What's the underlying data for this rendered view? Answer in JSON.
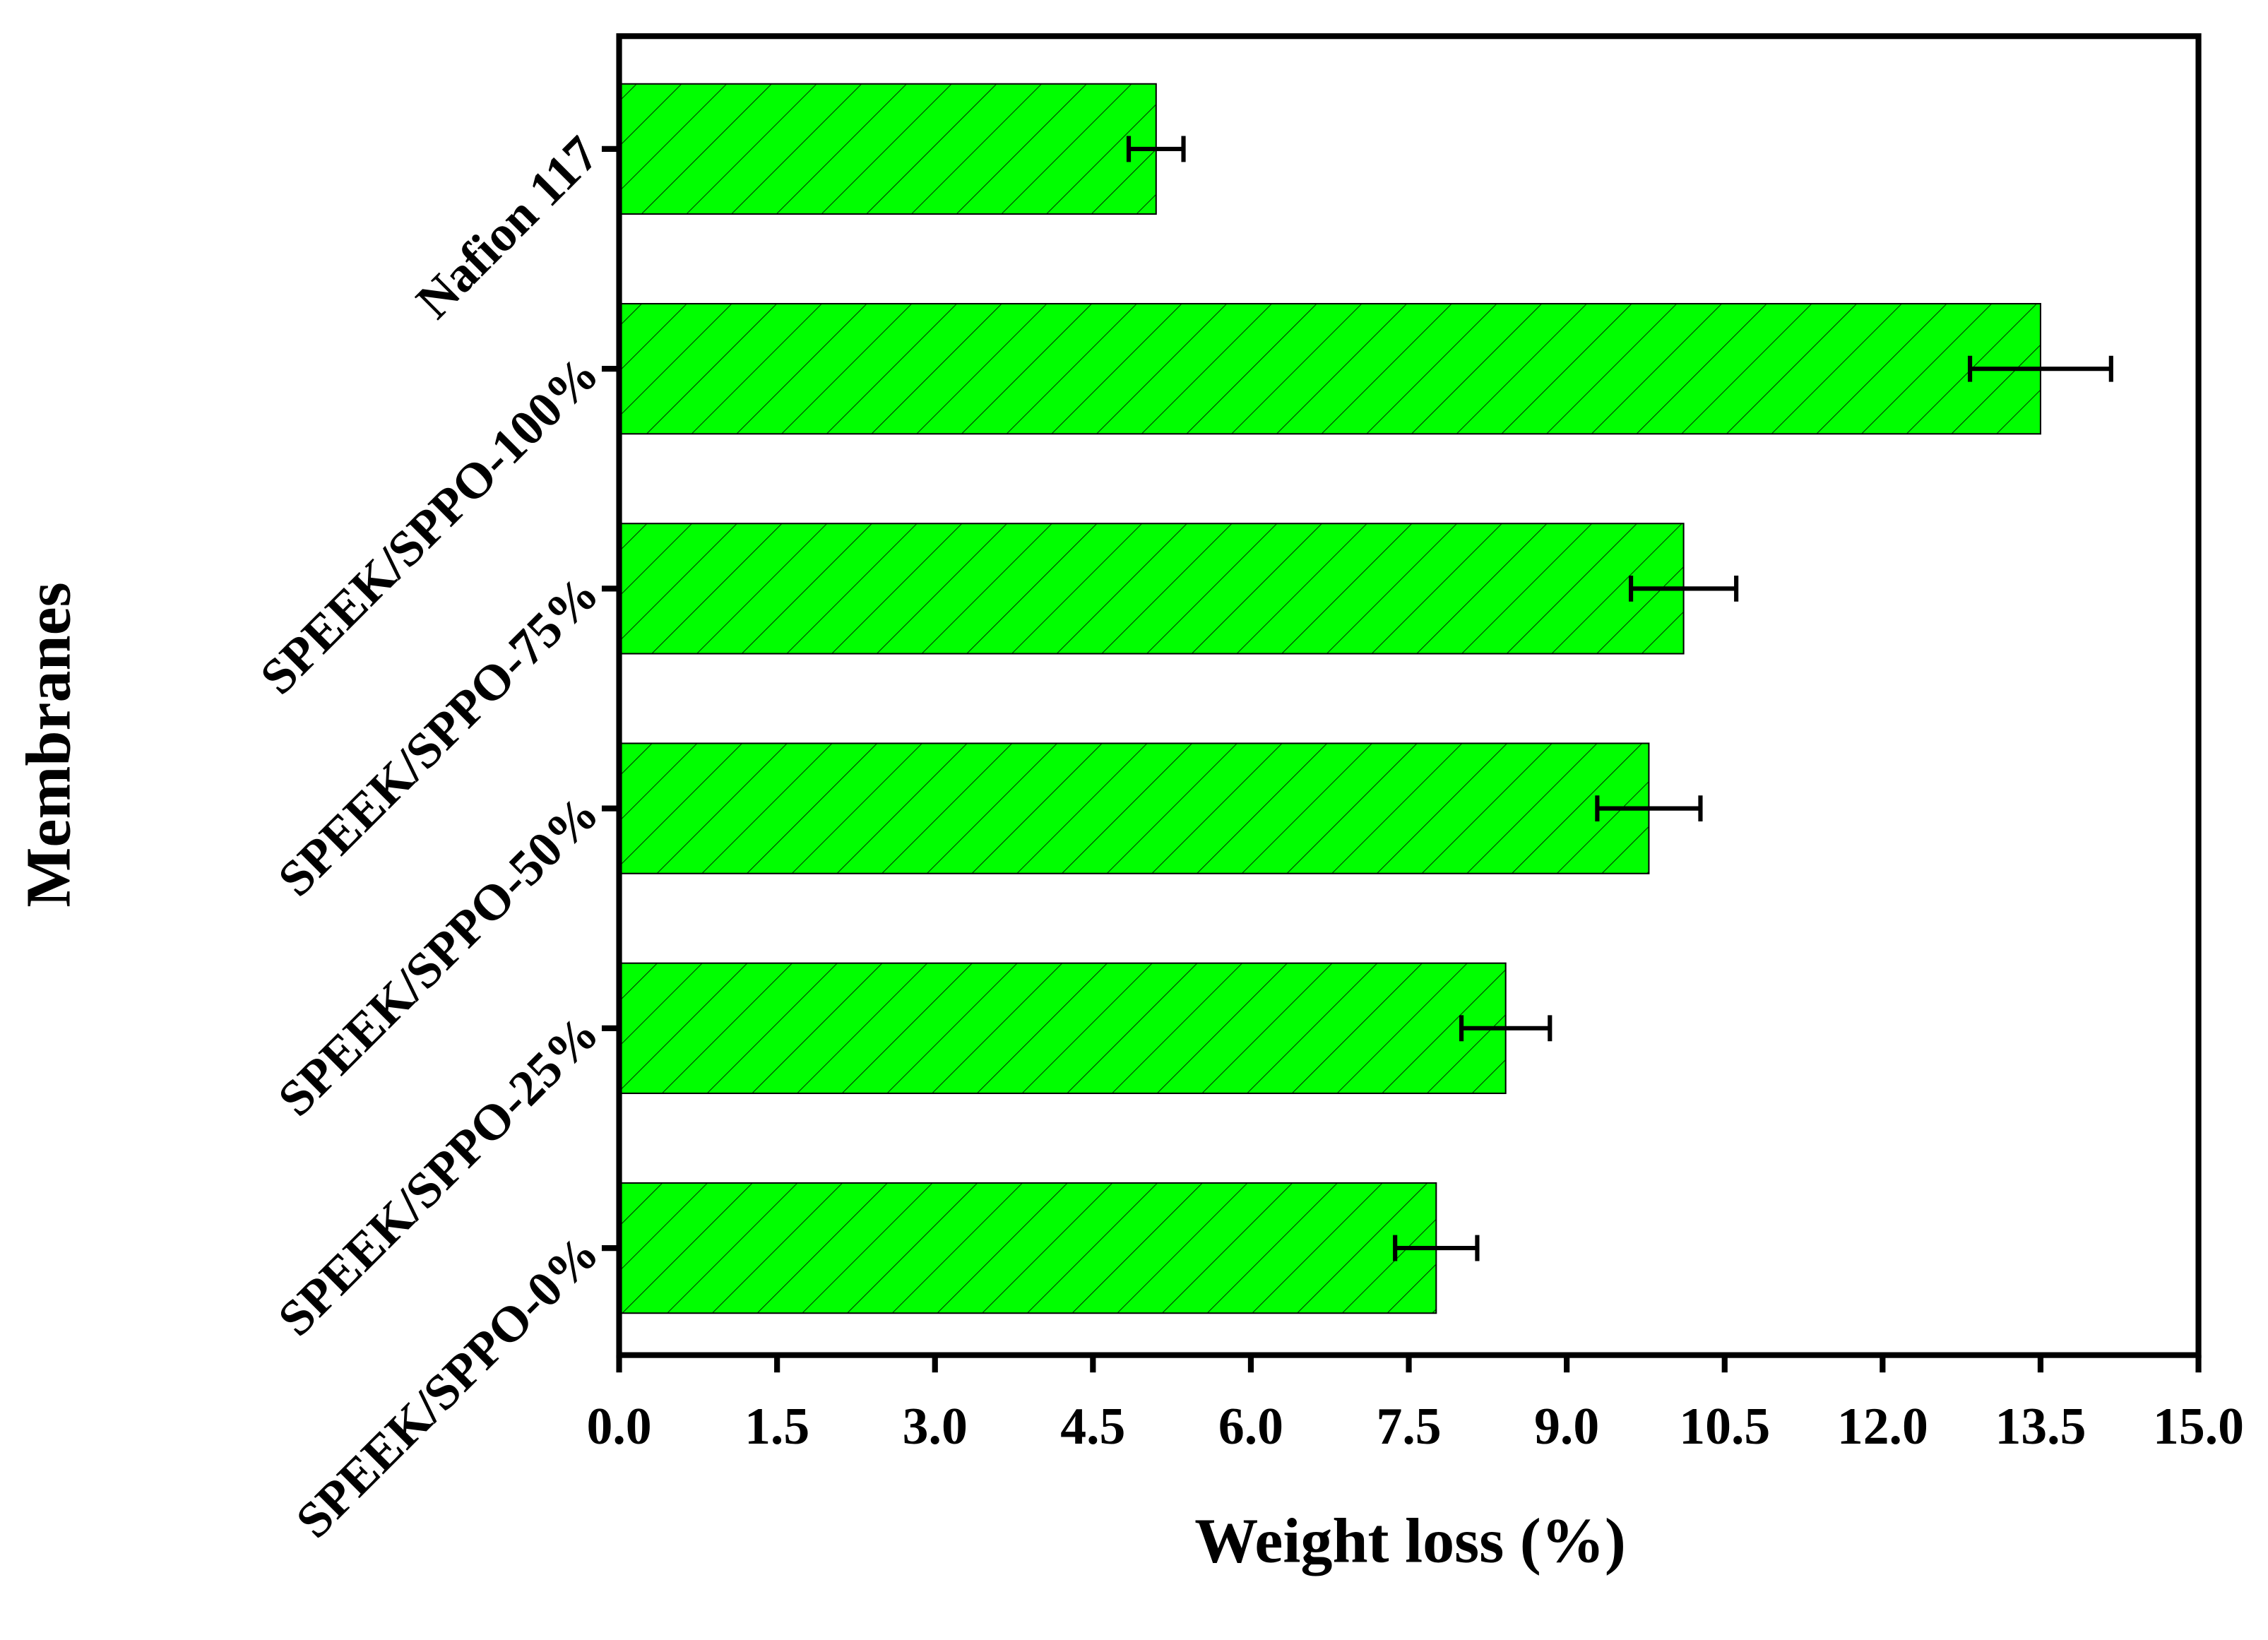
{
  "chart_data": {
    "type": "hbar",
    "xlabel": "Weight loss (%)",
    "ylabel": "Membranes",
    "categories": [
      "Nafion 117",
      "SPEEK/SPPO-100%",
      "SPEEK/SPPO-75%",
      "SPEEK/SPPO-50%",
      "SPEEK/SPPO-25%",
      "SPEEK/SPPO-0%"
    ],
    "values": [
      5.1,
      13.5,
      10.11,
      9.78,
      8.42,
      7.76
    ],
    "errors": [
      0.26,
      0.67,
      0.5,
      0.49,
      0.42,
      0.39
    ],
    "color": "#00ff00",
    "xlim": [
      0,
      15
    ],
    "xticks": [
      {
        "value": 0,
        "label": "0.0"
      },
      1.5,
      {
        "value": 3,
        "label": "3.0"
      },
      4.5,
      {
        "value": 6,
        "label": "6.0"
      },
      7.5,
      {
        "value": 9,
        "label": "9.0"
      },
      10.5,
      {
        "value": 12,
        "label": "12.0"
      },
      13.5,
      {
        "value": 15,
        "label": "15.0"
      }
    ]
  }
}
